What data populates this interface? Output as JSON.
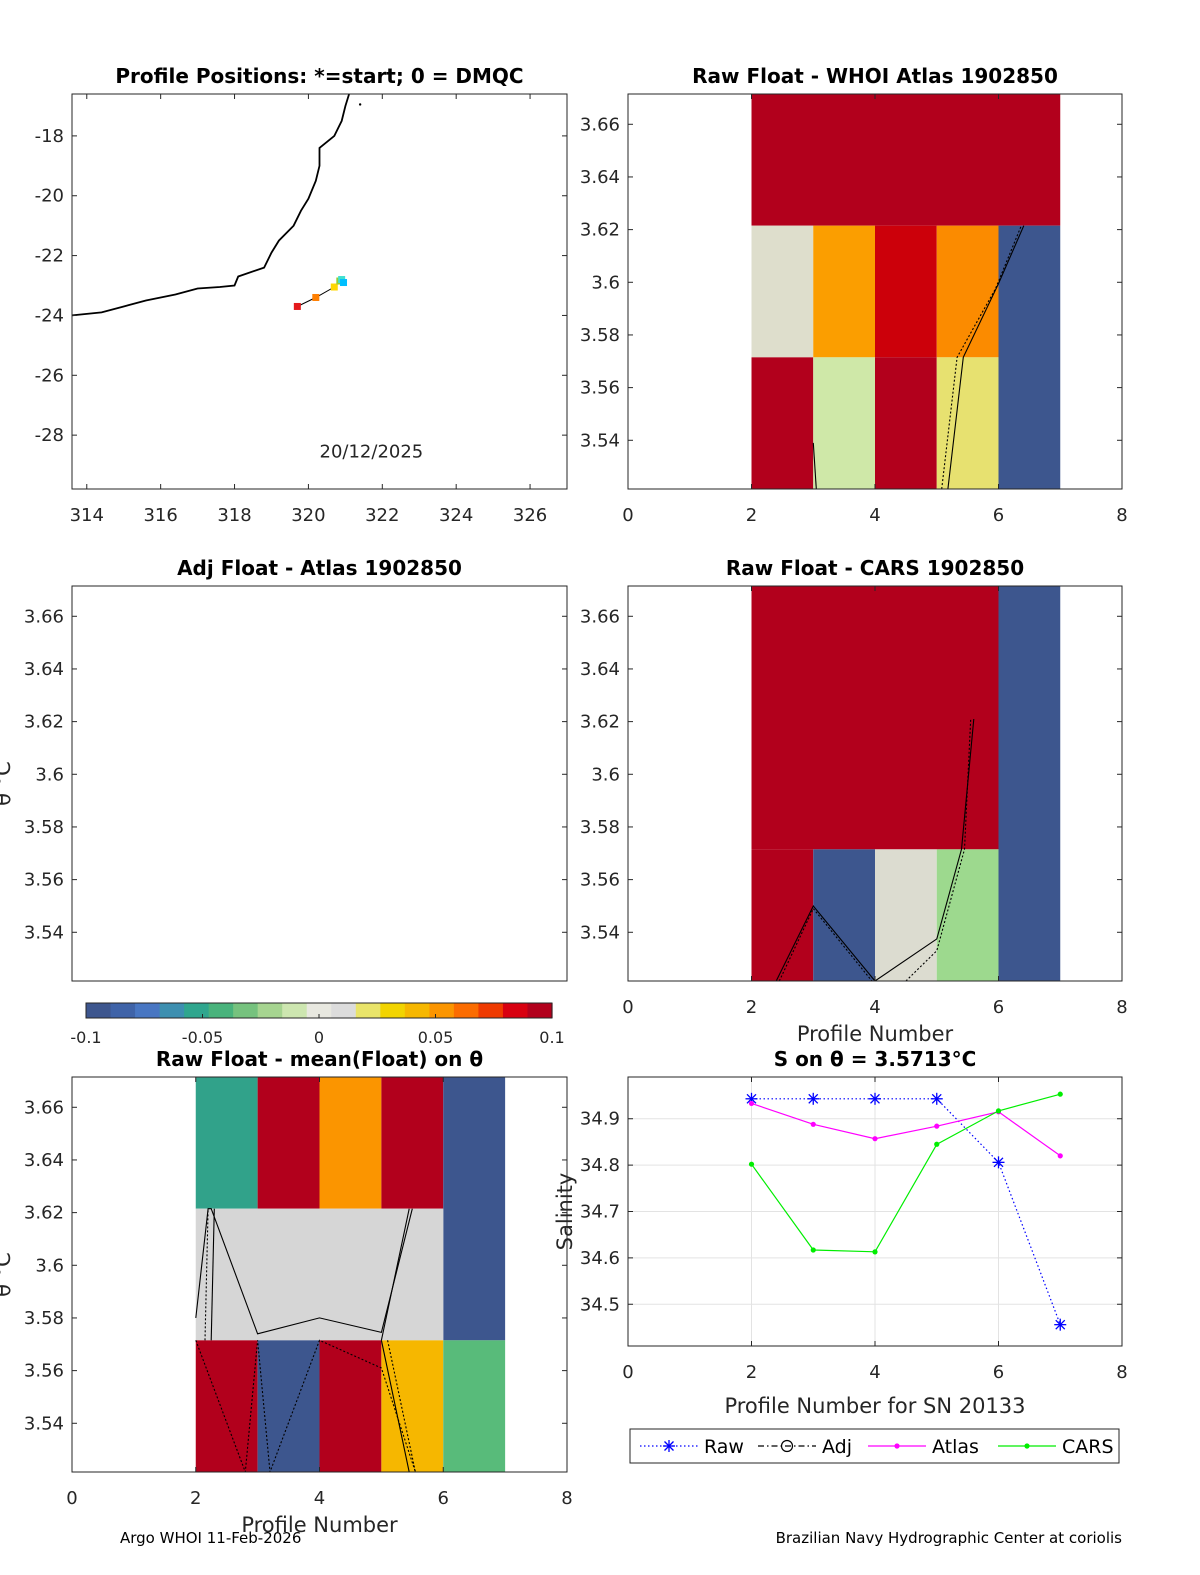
{
  "figure": {
    "footer_left": "Argo WHOI 11-Feb-2026",
    "footer_right": "Brazilian Navy Hydrographic Center at coriolis"
  },
  "colorbar": {
    "ticks": [
      "-0.1",
      "-0.05",
      "0",
      "0.05",
      "0.1"
    ],
    "range": [
      -0.1,
      0.1
    ]
  },
  "chart_data": [
    {
      "id": "positions",
      "type": "scatter",
      "title": "Profile Positions: *=start; 0 = DMQC",
      "annotation": "20/12/2025",
      "xlim": [
        313.6,
        327
      ],
      "ylim": [
        -29.8,
        -16.6
      ],
      "xticks": [
        314,
        316,
        318,
        320,
        322,
        324,
        326
      ],
      "xtick_labels": [
        "314",
        "316",
        "318",
        "320",
        "322",
        "324",
        "326"
      ],
      "yticks": [
        -18,
        -20,
        -22,
        -24,
        -26,
        -28
      ],
      "ytick_labels": [
        "-18",
        "-20",
        "-22",
        "-24",
        "-26",
        "-28"
      ],
      "coastline": [
        [
          313.6,
          -24.0
        ],
        [
          314.4,
          -23.9
        ],
        [
          315.0,
          -23.7
        ],
        [
          315.6,
          -23.5
        ],
        [
          316.4,
          -23.3
        ],
        [
          317.0,
          -23.1
        ],
        [
          317.6,
          -23.05
        ],
        [
          318.0,
          -23.0
        ],
        [
          318.1,
          -22.7
        ],
        [
          318.8,
          -22.4
        ],
        [
          319.0,
          -21.9
        ],
        [
          319.2,
          -21.5
        ],
        [
          319.6,
          -21.0
        ],
        [
          319.8,
          -20.5
        ],
        [
          320.0,
          -20.1
        ],
        [
          320.2,
          -19.5
        ],
        [
          320.3,
          -19.0
        ],
        [
          320.3,
          -18.4
        ],
        [
          320.7,
          -18.0
        ],
        [
          320.9,
          -17.5
        ],
        [
          321.0,
          -17.0
        ],
        [
          321.1,
          -16.6
        ]
      ],
      "points": [
        {
          "lon": 319.7,
          "lat": -23.7,
          "color": "#e41a1c"
        },
        {
          "lon": 320.2,
          "lat": -23.4,
          "color": "#ff7f00"
        },
        {
          "lon": 320.7,
          "lat": -23.05,
          "color": "#ffd700"
        },
        {
          "lon": 320.85,
          "lat": -22.85,
          "color": "#9acd32"
        },
        {
          "lon": 320.9,
          "lat": -22.8,
          "color": "#40e0d0"
        },
        {
          "lon": 320.95,
          "lat": -22.9,
          "color": "#00bfff"
        }
      ]
    },
    {
      "id": "raw-whoi",
      "type": "heatmap",
      "title": "Raw Float - WHOI Atlas  1902850",
      "xlim": [
        0,
        8
      ],
      "ylim": [
        3.5215,
        3.6715
      ],
      "xticks": [
        0,
        2,
        4,
        6,
        8
      ],
      "xtick_labels": [
        "0",
        "2",
        "4",
        "6",
        "8"
      ],
      "yticks": [
        3.54,
        3.56,
        3.58,
        3.6,
        3.62,
        3.64,
        3.66
      ],
      "ytick_labels": [
        "3.54",
        "3.56",
        "3.58",
        "3.6",
        "3.62",
        "3.64",
        "3.66"
      ],
      "cells": [
        {
          "x0": 2,
          "x1": 7,
          "y0": 3.6215,
          "y1": 3.6715,
          "color": "#b2001c"
        },
        {
          "x0": 2,
          "x1": 3,
          "y0": 3.5715,
          "y1": 3.6215,
          "color": "#dedecc"
        },
        {
          "x0": 3,
          "x1": 4,
          "y0": 3.5715,
          "y1": 3.6215,
          "color": "#fb9e00"
        },
        {
          "x0": 4,
          "x1": 5,
          "y0": 3.5715,
          "y1": 3.6215,
          "color": "#cc000a"
        },
        {
          "x0": 5,
          "x1": 6,
          "y0": 3.5715,
          "y1": 3.6215,
          "color": "#fb8b00"
        },
        {
          "x0": 6,
          "x1": 7,
          "y0": 3.5215,
          "y1": 3.6215,
          "color": "#3d568e"
        },
        {
          "x0": 2,
          "x1": 3,
          "y0": 3.5215,
          "y1": 3.5715,
          "color": "#b2001c"
        },
        {
          "x0": 3,
          "x1": 4,
          "y0": 3.5215,
          "y1": 3.5715,
          "color": "#cfe8a8"
        },
        {
          "x0": 4,
          "x1": 5,
          "y0": 3.5215,
          "y1": 3.5715,
          "color": "#b2001c"
        },
        {
          "x0": 5,
          "x1": 6,
          "y0": 3.5215,
          "y1": 3.5715,
          "color": "#e7e170"
        }
      ],
      "lines": [
        [
          [
            3.0,
            3.539
          ],
          [
            3.05,
            3.5215
          ]
        ],
        [
          [
            5.08,
            3.5215
          ],
          [
            5.33,
            3.5715
          ],
          [
            5.95,
            3.5975
          ],
          [
            6.37,
            3.6215
          ]
        ],
        [
          [
            5.18,
            3.5215
          ],
          [
            5.43,
            3.5715
          ],
          [
            6.0,
            3.5995
          ],
          [
            6.41,
            3.6215
          ]
        ]
      ]
    },
    {
      "id": "adj-atlas",
      "type": "heatmap",
      "title": "Adj Float - Atlas  1902850",
      "xlim": [
        0,
        8
      ],
      "ylim": [
        3.5215,
        3.6715
      ],
      "yticks": [
        3.54,
        3.56,
        3.58,
        3.6,
        3.62,
        3.64,
        3.66
      ],
      "ytick_labels": [
        "3.54",
        "3.56",
        "3.58",
        "3.6",
        "3.62",
        "3.64",
        "3.66"
      ],
      "ylabel": "θ °C",
      "cells": [],
      "lines": []
    },
    {
      "id": "raw-cars",
      "type": "heatmap",
      "title": "Raw Float - CARS  1902850",
      "xlabel": "Profile Number",
      "xlim": [
        0,
        8
      ],
      "ylim": [
        3.5215,
        3.6715
      ],
      "xticks": [
        0,
        2,
        4,
        6,
        8
      ],
      "xtick_labels": [
        "0",
        "2",
        "4",
        "6",
        "8"
      ],
      "yticks": [
        3.54,
        3.56,
        3.58,
        3.6,
        3.62,
        3.64,
        3.66
      ],
      "ytick_labels": [
        "3.54",
        "3.56",
        "3.58",
        "3.6",
        "3.62",
        "3.64",
        "3.66"
      ],
      "cells": [
        {
          "x0": 2,
          "x1": 6,
          "y0": 3.5715,
          "y1": 3.6715,
          "color": "#b2001c"
        },
        {
          "x0": 6,
          "x1": 7,
          "y0": 3.5215,
          "y1": 3.6715,
          "color": "#3d568e"
        },
        {
          "x0": 2,
          "x1": 3,
          "y0": 3.5215,
          "y1": 3.5715,
          "color": "#b2001c"
        },
        {
          "x0": 3,
          "x1": 4,
          "y0": 3.5215,
          "y1": 3.5715,
          "color": "#3d568e"
        },
        {
          "x0": 4,
          "x1": 5,
          "y0": 3.5215,
          "y1": 3.5715,
          "color": "#dcdcd0"
        },
        {
          "x0": 5,
          "x1": 6,
          "y0": 3.5215,
          "y1": 3.5715,
          "color": "#9dd98e"
        }
      ],
      "lines": [
        [
          [
            2.4,
            3.5215
          ],
          [
            3.0,
            3.55
          ],
          [
            4.0,
            3.5215
          ]
        ],
        [
          [
            2.45,
            3.5215
          ],
          [
            3.0,
            3.549
          ],
          [
            3.95,
            3.5215
          ]
        ],
        [
          [
            4.0,
            3.5215
          ],
          [
            5.0,
            3.5375
          ],
          [
            5.4,
            3.5715
          ],
          [
            5.6,
            3.621
          ]
        ],
        [
          [
            4.5,
            3.5215
          ],
          [
            5.0,
            3.533
          ],
          [
            5.45,
            3.5715
          ],
          [
            5.55,
            3.621
          ]
        ]
      ]
    },
    {
      "id": "raw-mean",
      "type": "heatmap",
      "title": "Raw Float - mean(Float) on θ",
      "xlabel": "Profile Number",
      "ylabel": "θ °C",
      "xlim": [
        0,
        8
      ],
      "ylim": [
        3.5215,
        3.6715
      ],
      "xticks": [
        0,
        2,
        4,
        6,
        8
      ],
      "xtick_labels": [
        "0",
        "2",
        "4",
        "6",
        "8"
      ],
      "yticks": [
        3.54,
        3.56,
        3.58,
        3.6,
        3.62,
        3.64,
        3.66
      ],
      "ytick_labels": [
        "3.54",
        "3.56",
        "3.58",
        "3.6",
        "3.62",
        "3.64",
        "3.66"
      ],
      "cells": [
        {
          "x0": 2,
          "x1": 3,
          "y0": 3.6215,
          "y1": 3.6715,
          "color": "#31a28a"
        },
        {
          "x0": 3,
          "x1": 4,
          "y0": 3.6215,
          "y1": 3.6715,
          "color": "#b2001c"
        },
        {
          "x0": 4,
          "x1": 5,
          "y0": 3.6215,
          "y1": 3.6715,
          "color": "#fb9500"
        },
        {
          "x0": 5,
          "x1": 6,
          "y0": 3.6215,
          "y1": 3.6715,
          "color": "#b2001c"
        },
        {
          "x0": 6,
          "x1": 7,
          "y0": 3.5715,
          "y1": 3.6715,
          "color": "#3d568e"
        },
        {
          "x0": 2,
          "x1": 6,
          "y0": 3.5715,
          "y1": 3.6215,
          "color": "#d6d6d6"
        },
        {
          "x0": 2,
          "x1": 3,
          "y0": 3.5215,
          "y1": 3.5715,
          "color": "#b2001c"
        },
        {
          "x0": 3,
          "x1": 4,
          "y0": 3.5215,
          "y1": 3.5715,
          "color": "#3d568e"
        },
        {
          "x0": 4,
          "x1": 5,
          "y0": 3.5215,
          "y1": 3.5715,
          "color": "#b2001c"
        },
        {
          "x0": 5,
          "x1": 6,
          "y0": 3.5215,
          "y1": 3.5715,
          "color": "#f6b700"
        },
        {
          "x0": 6,
          "x1": 7,
          "y0": 3.5215,
          "y1": 3.5715,
          "color": "#58bb7a"
        }
      ],
      "lines": [
        [
          [
            2.0,
            3.58
          ],
          [
            2.2,
            3.6215
          ],
          [
            2.25,
            3.6215
          ],
          [
            3.0,
            3.574
          ],
          [
            4.0,
            3.58
          ],
          [
            5.0,
            3.5745
          ],
          [
            5.5,
            3.6215
          ]
        ],
        [
          [
            2.15,
            3.5715
          ],
          [
            2.2,
            3.6215
          ]
        ],
        [
          [
            2.25,
            3.5715
          ],
          [
            2.3,
            3.6215
          ]
        ],
        [
          [
            2.0,
            3.5715
          ],
          [
            2.8,
            3.5215
          ],
          [
            3.0,
            3.5715
          ],
          [
            3.2,
            3.5215
          ],
          [
            4.0,
            3.5715
          ],
          [
            5.0,
            3.561
          ],
          [
            5.55,
            3.5215
          ]
        ],
        [
          [
            5.0,
            3.5715
          ],
          [
            5.45,
            3.5215
          ]
        ],
        [
          [
            5.1,
            3.5715
          ],
          [
            5.55,
            3.5215
          ]
        ],
        [
          [
            5.0,
            3.5715
          ],
          [
            5.45,
            3.6215
          ]
        ]
      ]
    },
    {
      "id": "salinity",
      "type": "line",
      "title": "S on θ = 3.5713°C",
      "xlabel": "Profile Number for SN 20133",
      "ylabel": "Salinity",
      "xlim": [
        0,
        8
      ],
      "ylim": [
        34.41,
        34.99
      ],
      "xticks": [
        0,
        2,
        4,
        6,
        8
      ],
      "xtick_labels": [
        "0",
        "2",
        "4",
        "6",
        "8"
      ],
      "yticks": [
        34.5,
        34.6,
        34.7,
        34.8,
        34.9
      ],
      "ytick_labels": [
        "34.5",
        "34.6",
        "34.7",
        "34.8",
        "34.9"
      ],
      "series": [
        {
          "name": "Raw",
          "color": "#0000ff",
          "x": [
            2,
            3,
            4,
            5,
            6,
            7
          ],
          "values": [
            34.943,
            34.943,
            34.943,
            34.943,
            34.806,
            34.456
          ]
        },
        {
          "name": "Adj",
          "color": "#000000",
          "x": [],
          "values": []
        },
        {
          "name": "Atlas",
          "color": "#ff00ff",
          "x": [
            2,
            3,
            4,
            5,
            6,
            7
          ],
          "values": [
            34.933,
            34.888,
            34.857,
            34.884,
            34.915,
            34.82
          ]
        },
        {
          "name": "CARS",
          "color": "#00ee00",
          "x": [
            2,
            3,
            4,
            5,
            6,
            7
          ],
          "values": [
            34.802,
            34.617,
            34.613,
            34.845,
            34.917,
            34.953
          ]
        }
      ]
    }
  ]
}
